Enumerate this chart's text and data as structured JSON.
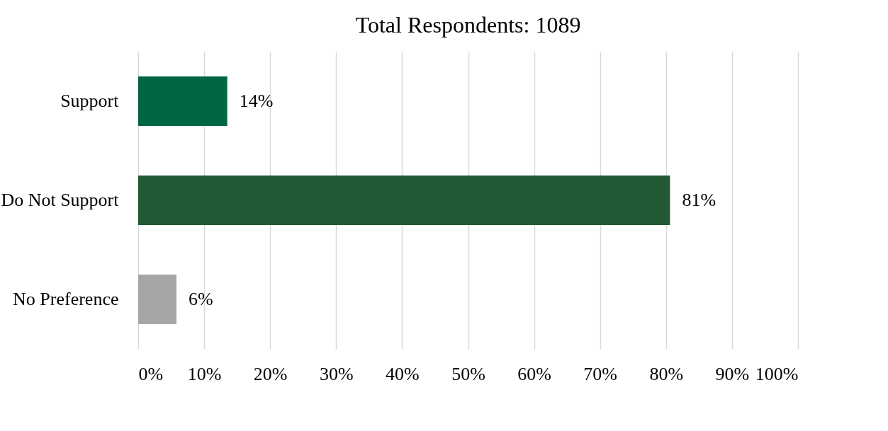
{
  "chart_data": {
    "type": "bar",
    "orientation": "horizontal",
    "title": "Total Respondents: 1089",
    "categories": [
      "Support",
      "Do Not Support",
      "No Preference"
    ],
    "values": [
      13.5,
      80.6,
      5.8
    ],
    "value_labels": [
      "14%",
      "81%",
      "6%"
    ],
    "colors": [
      "#006642",
      "#215a35",
      "#a6a6a6"
    ],
    "xlim": [
      0,
      100
    ],
    "xticks": [
      {
        "value": 0,
        "label": "0%"
      },
      {
        "value": 10,
        "label": "10%"
      },
      {
        "value": 20,
        "label": "20%"
      },
      {
        "value": 30,
        "label": "30%"
      },
      {
        "value": 40,
        "label": "40%"
      },
      {
        "value": 50,
        "label": "50%"
      },
      {
        "value": 60,
        "label": "60%"
      },
      {
        "value": 70,
        "label": "70%"
      },
      {
        "value": 80,
        "label": "80%"
      },
      {
        "value": 90,
        "label": "90%"
      },
      {
        "value": 100,
        "label": "100%"
      }
    ],
    "grid": "x"
  }
}
